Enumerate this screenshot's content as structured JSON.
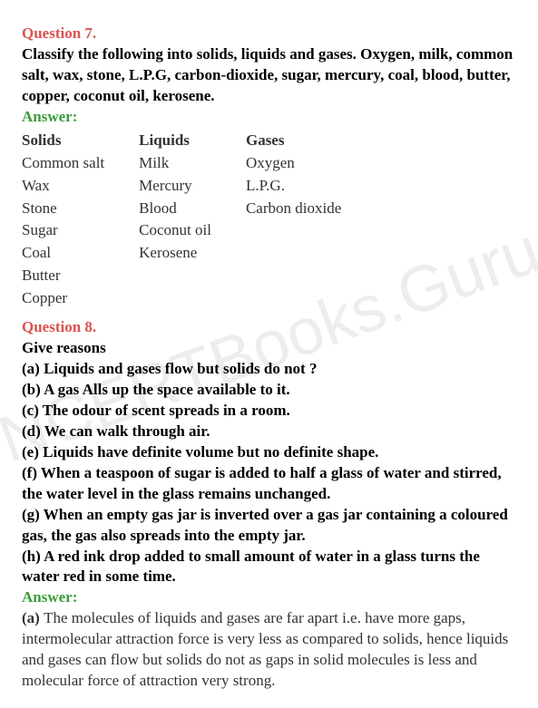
{
  "watermark": "NCERTBooks.Guru",
  "q7": {
    "label": "Question 7.",
    "body": "Classify the following into solids, liquids and gases. Oxygen, milk, common salt, wax, stone, L.P.G, carbon-dioxide, sugar, mercury, coal, blood, butter, copper, coconut oil, kerosene.",
    "answerLabel": "Answer:",
    "table": {
      "headers": {
        "c1": "Solids",
        "c2": "Liquids",
        "c3": "Gases"
      },
      "rows": [
        {
          "c1": "Common salt",
          "c2": "Milk",
          "c3": "Oxygen"
        },
        {
          "c1": "Wax",
          "c2": "Mercury",
          "c3": "L.P.G."
        },
        {
          "c1": "Stone",
          "c2": "Blood",
          "c3": "Carbon dioxide"
        },
        {
          "c1": "Sugar",
          "c2": "Coconut oil",
          "c3": ""
        },
        {
          "c1": "Coal",
          "c2": "Kerosene",
          "c3": ""
        },
        {
          "c1": "Butter",
          "c2": "",
          "c3": ""
        },
        {
          "c1": "Copper",
          "c2": "",
          "c3": ""
        }
      ]
    }
  },
  "q8": {
    "label": "Question 8.",
    "lead": "Give reasons",
    "parts": {
      "a": "(a) Liquids and gases flow but solids do not ?",
      "b": "(b) A gas Alls up the space available to it.",
      "c": "(c) The odour of scent spreads in a room.",
      "d": "(d) We can walk through air.",
      "e": "(e) Liquids have definite volume but no definite shape.",
      "f": "(f) When a teaspoon of sugar is added to half a glass of water and stirred, the water level in the glass remains unchanged.",
      "g": "(g) When an empty gas jar is inverted over a gas jar containing a coloured gas, the gas also spreads into the empty jar.",
      "h": "(h) A red ink drop added to small amount of water in a glass turns the water red in some time."
    },
    "answerLabel": "Answer:",
    "answers": {
      "a_prefix": "(a) ",
      "a": "The molecules of liquids and gases are far apart i.e. have more gaps, intermolecular attraction force is very less as compared to solids, hence liquids and gases can flow but solids do not as gaps in solid molecules is less and molecular force of attraction very strong."
    }
  },
  "style": {
    "colors": {
      "questionLabel": "#d9534f",
      "answerLabel": "#3a9d3a",
      "bodyText": "#000000",
      "answerText": "#333333",
      "background": "#ffffff",
      "watermark": "rgba(0,0,0,0.07)"
    },
    "fonts": {
      "body": "Georgia, Times New Roman, serif",
      "size_pt": 13
    }
  }
}
